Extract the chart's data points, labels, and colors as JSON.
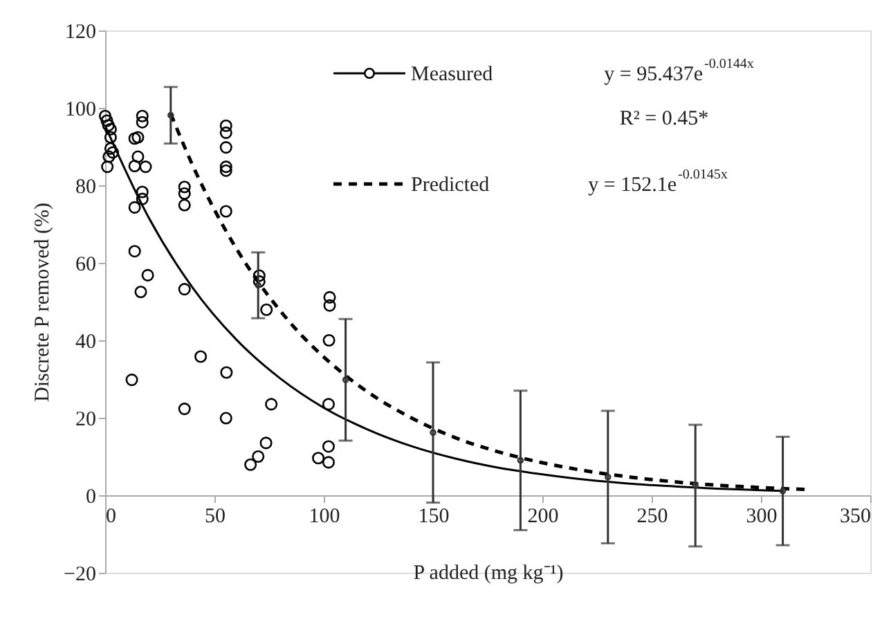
{
  "chart_data": {
    "type": "scatter",
    "xlabel": "P added (mg kg⁻¹)",
    "ylabel": "Discrete P removed (%)",
    "xlim": [
      0,
      350
    ],
    "xticks": [
      0,
      50,
      100,
      150,
      200,
      250,
      300,
      350
    ],
    "ylim": [
      -20,
      120
    ],
    "yticks": [
      -20,
      0,
      20,
      40,
      60,
      80,
      100,
      120
    ],
    "grid": false,
    "legend": "top",
    "annotations": [
      "y = 95.437e$^{-0.0144x}$",
      "R² = 0.45*",
      "y = 152.1e$^{-0.0145x}$"
    ],
    "series": [
      {
        "name": "Measured",
        "marker": "circle",
        "color": "#000000",
        "x": [
          0,
          0.8,
          1.5,
          2.5,
          2.5,
          2.5,
          3.5,
          1.7,
          1,
          13.5,
          15,
          17,
          17,
          15,
          13.5,
          18.5,
          13.5,
          17,
          17,
          13.5,
          19.5,
          16.3,
          36.3,
          36.3,
          36.3,
          36.3,
          55.3,
          55.3,
          55.3,
          55.3,
          55.3,
          55.3,
          70.5,
          70.5,
          73.8,
          102.7,
          102.7,
          102.4,
          12.2,
          43.7,
          55.5,
          36.3,
          55.3,
          76,
          73.6,
          70,
          66.5,
          97.5,
          102.2,
          102.2,
          102.2
        ],
        "values": [
          97.9,
          96.7,
          95.5,
          94.5,
          92.4,
          89.5,
          88.5,
          87.4,
          84.8,
          92.1,
          92.4,
          97.9,
          96.3,
          87.4,
          85,
          84.8,
          74.3,
          78.3,
          76.5,
          63,
          56.8,
          52.5,
          79.6,
          77.9,
          74.9,
          53.2,
          95.4,
          93.6,
          89.8,
          84.8,
          83.8,
          73.3,
          56.7,
          55.2,
          47.9,
          51.1,
          49,
          40,
          29.8,
          35.8,
          31.7,
          22.3,
          19.9,
          23.5,
          13.5,
          10,
          7.9,
          9.6,
          8.5,
          12.6,
          23.5
        ]
      },
      {
        "type": "line",
        "line_style": "solid",
        "marker": "none",
        "color": "#000000",
        "x": [
          0,
          20,
          40,
          60,
          80,
          100,
          120,
          140,
          160,
          180,
          200,
          220,
          240,
          260,
          280,
          300,
          310
        ],
        "values": [
          95.4,
          71.6,
          53.6,
          40.2,
          30.2,
          22.6,
          17.0,
          12.7,
          9.5,
          7.1,
          5.4,
          4.0,
          3.0,
          2.3,
          1.7,
          1.3,
          1.1
        ]
      },
      {
        "name": "Predicted",
        "type": "line",
        "line_style": "dashed",
        "marker": "none",
        "color": "#000000",
        "x": [
          30,
          40,
          50,
          60,
          70,
          80,
          90,
          100,
          120,
          140,
          160,
          180,
          200,
          220,
          240,
          260,
          280,
          300,
          320
        ],
        "values": [
          98.5,
          85.2,
          73.7,
          63.7,
          55.1,
          47.7,
          41.2,
          35.7,
          26.7,
          20.0,
          14.9,
          11.2,
          8.4,
          6.3,
          4.7,
          3.5,
          2.6,
          2.0,
          1.5
        ]
      },
      {
        "marker": "circle",
        "color": "#333333",
        "x": [
          30,
          70,
          110,
          150,
          190,
          230,
          270,
          310
        ],
        "values": [
          98.1,
          54.2,
          29.8,
          16.2,
          9.0,
          4.7,
          2.5,
          1.1
        ],
        "errors": [
          7.3,
          8.5,
          15.7,
          18.1,
          18,
          17.1,
          15.7,
          14
        ]
      }
    ]
  }
}
